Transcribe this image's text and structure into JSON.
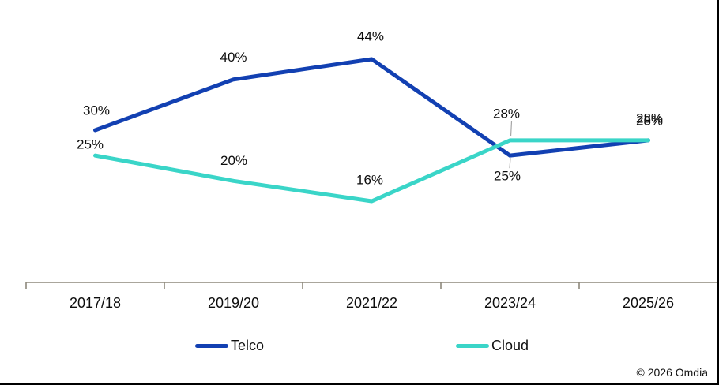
{
  "page": {
    "background": "#ffffff",
    "copyright": "© 2026 Omdia"
  },
  "chart_data": {
    "type": "line",
    "categories": [
      "2017/18",
      "2019/20",
      "2021/22",
      "2023/24",
      "2025/26"
    ],
    "series": [
      {
        "name": "Telco",
        "color": "#1240b2",
        "values": [
          30,
          40,
          44,
          25,
          28
        ],
        "labels": [
          "30%",
          "40%",
          "44%",
          "25%",
          "28%"
        ]
      },
      {
        "name": "Cloud",
        "color": "#3ad5c8",
        "values": [
          25,
          20,
          16,
          28,
          28
        ],
        "labels": [
          "25%",
          "20%",
          "16%",
          "28%",
          "28%"
        ]
      }
    ],
    "title": "",
    "xlabel": "",
    "ylabel": "",
    "ylim": [
      0,
      50
    ],
    "grid": false,
    "legend_position": "bottom",
    "axis_color": "#8e897c",
    "label_color": "#0d0d0d",
    "leader_line_color": "#a6a6a6"
  }
}
